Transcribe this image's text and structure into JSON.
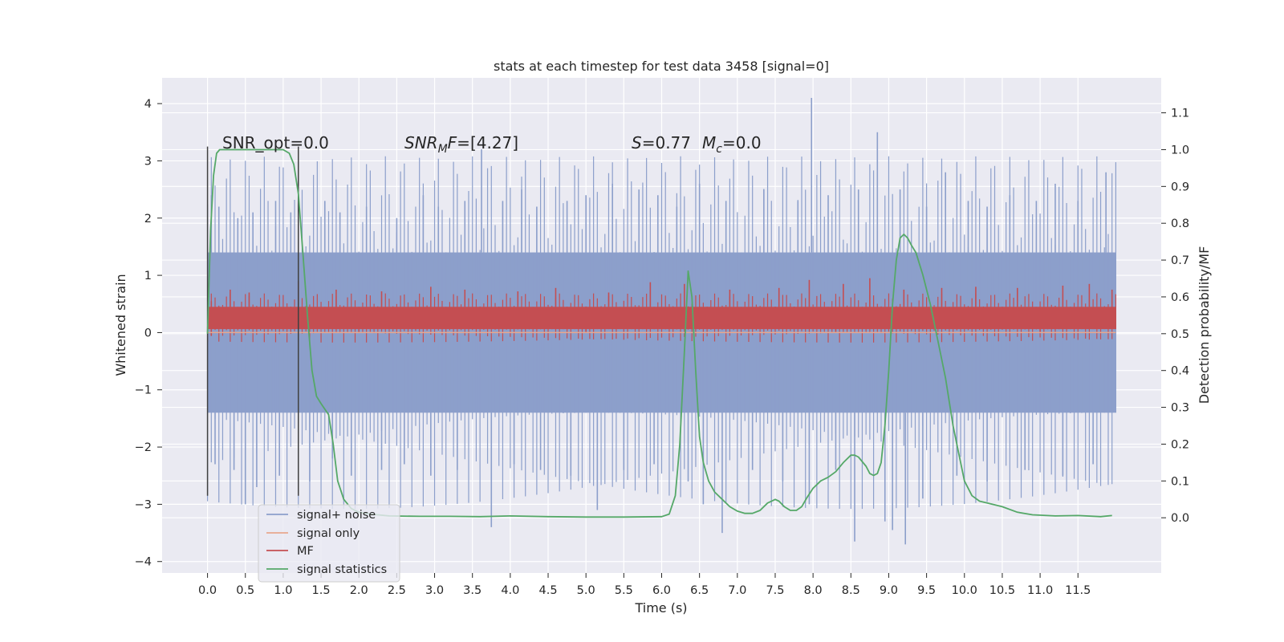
{
  "chart_data": {
    "type": "line",
    "title": "stats at each timestep for test data 3458 [signal=0]",
    "xlabel": "Time (s)",
    "ylabel_left": "Whitened strain",
    "ylabel_right": "Detection probability/MF",
    "xlim": [
      -0.6,
      12.6
    ],
    "ylim_left": [
      -4.2,
      4.45
    ],
    "ylim_right": [
      -0.15,
      1.195
    ],
    "x_ticks": [
      0.0,
      0.5,
      1.0,
      1.5,
      2.0,
      2.5,
      3.0,
      3.5,
      4.0,
      4.5,
      5.0,
      5.5,
      6.0,
      6.5,
      7.0,
      7.5,
      8.0,
      8.5,
      9.0,
      9.5,
      10.0,
      10.5,
      11.0,
      11.5
    ],
    "x_tick_labels": [
      "0.0",
      "0.5",
      "1.0",
      "1.5",
      "2.0",
      "2.5",
      "3.0",
      "3.5",
      "4.0",
      "4.5",
      "5.0",
      "5.5",
      "6.0",
      "6.5",
      "7.0",
      "7.5",
      "8.0",
      "8.5",
      "9.0",
      "9.5",
      "10.0",
      "10.5",
      "11.0",
      "11.5"
    ],
    "y_left_ticks": [
      4,
      3,
      2,
      1,
      0,
      -1,
      -2,
      -3,
      -4
    ],
    "y_left_tick_labels": [
      "4",
      "3",
      "2",
      "1",
      "0",
      "−1",
      "−2",
      "−3",
      "−4"
    ],
    "y_right_ticks": [
      1.1,
      1.0,
      0.9,
      0.8,
      0.7,
      0.6,
      0.5,
      0.4,
      0.3,
      0.2,
      0.1,
      0.0
    ],
    "y_right_tick_labels": [
      "1.1",
      "1.0",
      "0.9",
      "0.8",
      "0.7",
      "0.6",
      "0.5",
      "0.4",
      "0.3",
      "0.2",
      "0.1",
      "0.0"
    ],
    "grid": true,
    "legend_position": "bottom-left",
    "legend": [
      {
        "name": "signal+ noise",
        "color": "#8c9fcb"
      },
      {
        "name": "signal only",
        "color": "#e8a78e"
      },
      {
        "name": "MF",
        "color": "#c44e52"
      },
      {
        "name": "signal statistics",
        "color": "#55a868"
      }
    ],
    "annotations": {
      "snr_opt": "SNR_opt=0.0",
      "snr_mf": "[4.27]",
      "s_value": "0.77",
      "mc_value": "0.0"
    },
    "vertical_markers": [
      0.0,
      1.2
    ],
    "noise_band": {
      "x_range": [
        0.0,
        12.0
      ],
      "core_top": 1.4,
      "core_bottom": -1.4,
      "spikes_up": [
        [
          0.05,
          2.4
        ],
        [
          0.15,
          2.2
        ],
        [
          0.4,
          2.0
        ],
        [
          0.6,
          2.1
        ],
        [
          0.9,
          2.3
        ],
        [
          1.1,
          2.1
        ],
        [
          1.55,
          2.3
        ],
        [
          1.75,
          2.1
        ],
        [
          2.1,
          2.2
        ],
        [
          2.5,
          2.0
        ],
        [
          2.85,
          2.4
        ],
        [
          3.05,
          2.2
        ],
        [
          3.4,
          2.3
        ],
        [
          3.62,
          3.2
        ],
        [
          3.9,
          2.3
        ],
        [
          4.15,
          2.5
        ],
        [
          4.35,
          2.2
        ],
        [
          4.75,
          2.3
        ],
        [
          5.0,
          2.4
        ],
        [
          5.35,
          2.6
        ],
        [
          5.7,
          2.5
        ],
        [
          5.95,
          2.4
        ],
        [
          6.2,
          2.2
        ],
        [
          6.5,
          2.6
        ],
        [
          6.85,
          2.3
        ],
        [
          7.35,
          2.5
        ],
        [
          7.8,
          2.3
        ],
        [
          7.98,
          4.1
        ],
        [
          8.2,
          2.4
        ],
        [
          8.6,
          2.5
        ],
        [
          8.85,
          3.5
        ],
        [
          9.15,
          2.5
        ],
        [
          9.5,
          2.2
        ],
        [
          9.75,
          2.8
        ],
        [
          10.05,
          2.3
        ],
        [
          10.3,
          2.2
        ],
        [
          10.6,
          2.4
        ],
        [
          10.95,
          2.3
        ],
        [
          11.2,
          2.6
        ],
        [
          11.5,
          2.3
        ],
        [
          11.87,
          2.8
        ]
      ],
      "spikes_down": [
        [
          0.1,
          -2.3
        ],
        [
          0.35,
          -2.4
        ],
        [
          0.5,
          -3.0
        ],
        [
          0.65,
          -2.7
        ],
        [
          0.95,
          -2.5
        ],
        [
          1.35,
          -2.6
        ],
        [
          1.65,
          -2.2
        ],
        [
          1.9,
          -2.5
        ],
        [
          2.3,
          -2.4
        ],
        [
          2.6,
          -2.3
        ],
        [
          2.95,
          -2.5
        ],
        [
          3.3,
          -2.4
        ],
        [
          3.75,
          -3.4
        ],
        [
          4.05,
          -2.3
        ],
        [
          4.4,
          -2.4
        ],
        [
          4.8,
          -2.5
        ],
        [
          5.15,
          -3.1
        ],
        [
          5.5,
          -2.4
        ],
        [
          5.9,
          -2.3
        ],
        [
          6.35,
          -2.6
        ],
        [
          6.55,
          -3.0
        ],
        [
          6.8,
          -3.5
        ],
        [
          7.2,
          -2.4
        ],
        [
          7.6,
          -2.6
        ],
        [
          7.95,
          -3.0
        ],
        [
          8.3,
          -2.4
        ],
        [
          8.55,
          -3.65
        ],
        [
          8.95,
          -3.3
        ],
        [
          9.05,
          -3.45
        ],
        [
          9.22,
          -3.7
        ],
        [
          9.45,
          -2.9
        ],
        [
          9.9,
          -2.5
        ],
        [
          10.3,
          -2.6
        ],
        [
          10.8,
          -2.4
        ],
        [
          11.3,
          -2.5
        ],
        [
          11.7,
          -2.3
        ]
      ]
    },
    "mf_band": {
      "x_range": [
        0.0,
        12.0
      ],
      "core_top": 0.45,
      "core_bottom": 0.06,
      "spikes_up": [
        [
          0.05,
          0.55
        ],
        [
          0.3,
          0.75
        ],
        [
          0.55,
          0.7
        ],
        [
          1.2,
          0.9
        ],
        [
          1.7,
          0.75
        ],
        [
          2.3,
          0.72
        ],
        [
          2.95,
          0.8
        ],
        [
          3.4,
          0.75
        ],
        [
          4.1,
          0.72
        ],
        [
          4.6,
          0.78
        ],
        [
          5.3,
          0.7
        ],
        [
          5.85,
          0.88
        ],
        [
          6.3,
          0.85
        ],
        [
          6.9,
          0.75
        ],
        [
          7.55,
          0.78
        ],
        [
          7.95,
          0.92
        ],
        [
          8.4,
          0.85
        ],
        [
          8.75,
          0.95
        ],
        [
          9.2,
          0.75
        ],
        [
          9.7,
          0.78
        ],
        [
          10.15,
          0.8
        ],
        [
          10.7,
          0.78
        ],
        [
          11.3,
          0.82
        ],
        [
          11.65,
          0.85
        ],
        [
          11.95,
          0.75
        ]
      ],
      "spikes_down": [
        [
          0.05,
          -0.05
        ],
        [
          2.0,
          0.0
        ],
        [
          5.0,
          0.0
        ],
        [
          8.3,
          0.0
        ],
        [
          11.0,
          0.0
        ]
      ]
    },
    "signal_only": {
      "x": [
        0.0,
        12.0
      ],
      "y": [
        0.0,
        0.0
      ]
    },
    "series": [
      {
        "name": "signal statistics",
        "axis": "right",
        "x": [
          0.0,
          0.04,
          0.08,
          0.12,
          0.16,
          0.22,
          0.3,
          0.4,
          0.6,
          0.8,
          1.0,
          1.08,
          1.14,
          1.2,
          1.26,
          1.32,
          1.38,
          1.44,
          1.5,
          1.6,
          1.66,
          1.72,
          1.8,
          1.9,
          2.0,
          2.15,
          2.4,
          2.8,
          3.2,
          3.6,
          4.0,
          4.5,
          5.0,
          5.5,
          6.0,
          6.1,
          6.18,
          6.24,
          6.3,
          6.35,
          6.4,
          6.45,
          6.5,
          6.55,
          6.62,
          6.7,
          6.8,
          6.9,
          7.0,
          7.1,
          7.2,
          7.3,
          7.4,
          7.5,
          7.55,
          7.62,
          7.7,
          7.78,
          7.85,
          7.92,
          8.0,
          8.1,
          8.2,
          8.3,
          8.4,
          8.5,
          8.55,
          8.6,
          8.7,
          8.75,
          8.8,
          8.85,
          8.9,
          8.95,
          9.0,
          9.05,
          9.1,
          9.15,
          9.2,
          9.25,
          9.3,
          9.36,
          9.45,
          9.55,
          9.65,
          9.75,
          9.85,
          9.9,
          10.0,
          10.1,
          10.2,
          10.3,
          10.5,
          10.7,
          10.9,
          11.2,
          11.5,
          11.8,
          11.95
        ],
        "y": [
          0.5,
          0.78,
          0.93,
          0.99,
          1.0,
          1.0,
          1.0,
          1.0,
          1.0,
          1.0,
          1.0,
          0.99,
          0.96,
          0.88,
          0.72,
          0.55,
          0.4,
          0.33,
          0.31,
          0.28,
          0.2,
          0.1,
          0.05,
          0.025,
          0.015,
          0.01,
          0.005,
          0.004,
          0.004,
          0.003,
          0.005,
          0.003,
          0.002,
          0.002,
          0.003,
          0.01,
          0.06,
          0.2,
          0.45,
          0.67,
          0.6,
          0.4,
          0.22,
          0.15,
          0.1,
          0.07,
          0.05,
          0.03,
          0.018,
          0.012,
          0.012,
          0.02,
          0.04,
          0.05,
          0.045,
          0.03,
          0.02,
          0.02,
          0.03,
          0.055,
          0.08,
          0.1,
          0.11,
          0.125,
          0.15,
          0.17,
          0.17,
          0.165,
          0.14,
          0.12,
          0.115,
          0.12,
          0.15,
          0.25,
          0.4,
          0.58,
          0.7,
          0.76,
          0.77,
          0.76,
          0.74,
          0.72,
          0.66,
          0.58,
          0.48,
          0.38,
          0.25,
          0.2,
          0.1,
          0.06,
          0.045,
          0.04,
          0.03,
          0.015,
          0.008,
          0.005,
          0.006,
          0.003,
          0.006
        ]
      }
    ]
  }
}
